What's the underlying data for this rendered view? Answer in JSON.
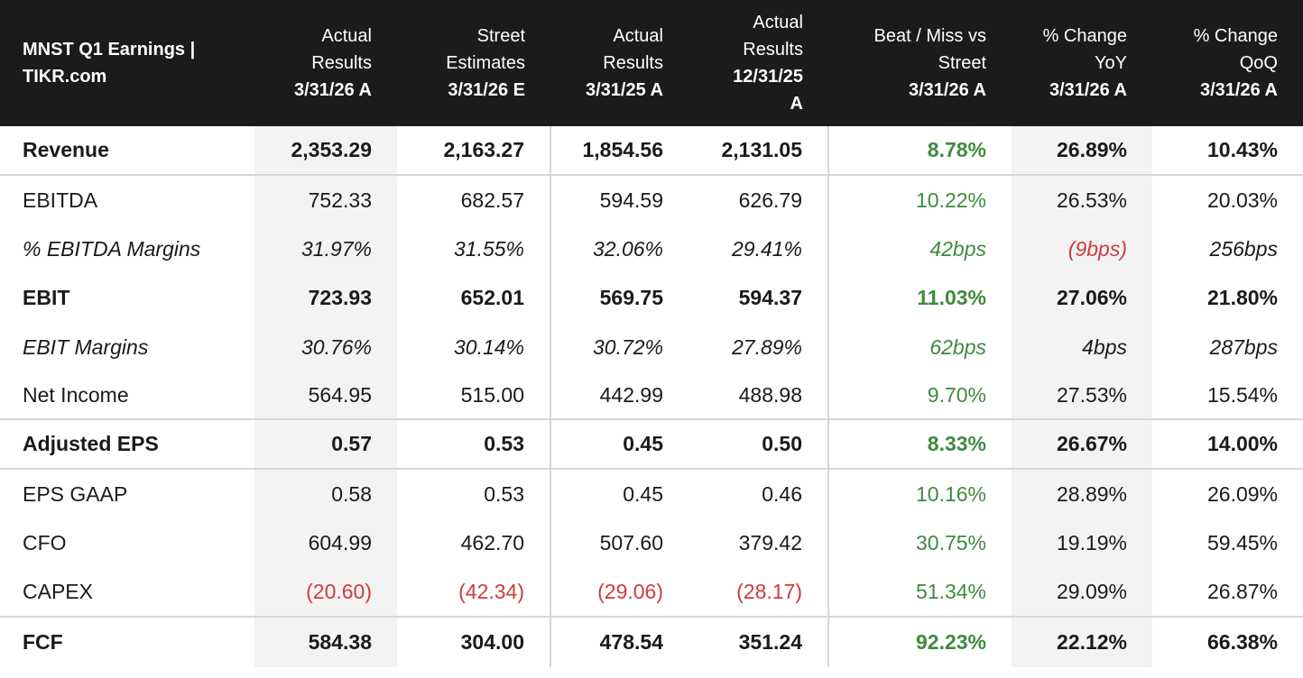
{
  "table": {
    "title": [
      "MNST Q1 Earnings |",
      "TIKR.com"
    ],
    "columns": [
      {
        "lines": [
          "Actual",
          "Results"
        ],
        "date": "3/31/26 A"
      },
      {
        "lines": [
          "Street",
          "Estimates"
        ],
        "date": "3/31/26 E"
      },
      {
        "lines": [
          "Actual",
          "Results"
        ],
        "date": "3/31/25 A"
      },
      {
        "lines": [
          "Actual",
          "Results",
          "12/31/25"
        ],
        "date": "A"
      },
      {
        "lines": [
          "Beat / Miss vs",
          "Street"
        ],
        "date": "3/31/26 A"
      },
      {
        "lines": [
          "% Change",
          "YoY"
        ],
        "date": "3/31/26 A"
      },
      {
        "lines": [
          "% Change",
          "QoQ"
        ],
        "date": "3/31/26 A"
      }
    ],
    "rows": [
      {
        "label": "Revenue",
        "values": [
          "2,353.29",
          "2,163.27",
          "1,854.56",
          "2,131.05",
          "8.78%",
          "26.89%",
          "10.43%"
        ]
      },
      {
        "label": "EBITDA",
        "values": [
          "752.33",
          "682.57",
          "594.59",
          "626.79",
          "10.22%",
          "26.53%",
          "20.03%"
        ]
      },
      {
        "label": "% EBITDA Margins",
        "values": [
          "31.97%",
          "31.55%",
          "32.06%",
          "29.41%",
          "42bps",
          "(9bps)",
          "256bps"
        ]
      },
      {
        "label": "EBIT",
        "values": [
          "723.93",
          "652.01",
          "569.75",
          "594.37",
          "11.03%",
          "27.06%",
          "21.80%"
        ]
      },
      {
        "label": "EBIT Margins",
        "values": [
          "30.76%",
          "30.14%",
          "30.72%",
          "27.89%",
          "62bps",
          "4bps",
          "287bps"
        ]
      },
      {
        "label": "Net Income",
        "values": [
          "564.95",
          "515.00",
          "442.99",
          "488.98",
          "9.70%",
          "27.53%",
          "15.54%"
        ]
      },
      {
        "label": "Adjusted EPS",
        "values": [
          "0.57",
          "0.53",
          "0.45",
          "0.50",
          "8.33%",
          "26.67%",
          "14.00%"
        ]
      },
      {
        "label": "EPS GAAP",
        "values": [
          "0.58",
          "0.53",
          "0.45",
          "0.46",
          "10.16%",
          "28.89%",
          "26.09%"
        ]
      },
      {
        "label": "CFO",
        "values": [
          "604.99",
          "462.70",
          "507.60",
          "379.42",
          "30.75%",
          "19.19%",
          "59.45%"
        ]
      },
      {
        "label": "CAPEX",
        "values": [
          "(20.60)",
          "(42.34)",
          "(29.06)",
          "(28.17)",
          "51.34%",
          "29.09%",
          "26.87%"
        ]
      },
      {
        "label": "FCF",
        "values": [
          "584.38",
          "304.00",
          "478.54",
          "351.24",
          "92.23%",
          "22.12%",
          "66.38%"
        ]
      }
    ],
    "colors": {
      "header_bg": "#1b1b1b",
      "positive": "#3f8a3f",
      "negative": "#d03b3b",
      "shade": "#f3f3f3"
    }
  }
}
